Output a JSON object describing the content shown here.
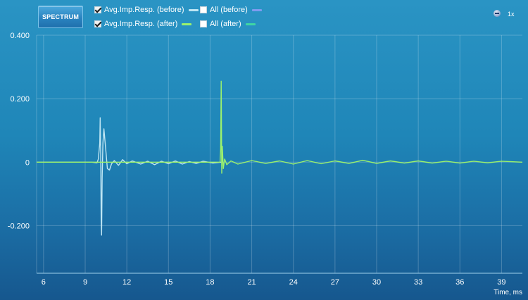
{
  "toolbar": {
    "spectrum_label": "SPECTRUM",
    "zoom_label": "1x"
  },
  "legend": [
    {
      "id": "avg-before",
      "label": "Avg.Imp.Resp. (before)",
      "checked": true,
      "color": "#bfe6f4"
    },
    {
      "id": "all-before",
      "label": "All (before)",
      "checked": false,
      "color": "#7f9cf0"
    },
    {
      "id": "avg-after",
      "label": "Avg.Imp.Resp. (after)",
      "checked": true,
      "color": "#9cf26c"
    },
    {
      "id": "all-after",
      "label": "All (after)",
      "checked": false,
      "color": "#3fd6a4"
    }
  ],
  "chart_data": {
    "type": "line",
    "xlabel": "Time, ms",
    "ylabel": "",
    "xlim": [
      5.5,
      40.5
    ],
    "ylim": [
      -0.35,
      0.4
    ],
    "x_ticks": [
      6,
      9,
      12,
      15,
      18,
      21,
      24,
      27,
      30,
      33,
      36,
      39
    ],
    "y_ticks": [
      0.4,
      0.2,
      0,
      -0.2
    ],
    "y_tick_labels": [
      "0.400",
      "0.200",
      "0",
      "-0.200"
    ],
    "grid": true,
    "series": [
      {
        "name": "Avg.Imp.Resp. (before)",
        "color": "#bfe6f4",
        "points": [
          [
            5.5,
            0
          ],
          [
            9.5,
            0
          ],
          [
            9.85,
            -0.002
          ],
          [
            9.95,
            0.01
          ],
          [
            10.05,
            0.06
          ],
          [
            10.08,
            0.14
          ],
          [
            10.12,
            0.02
          ],
          [
            10.15,
            -0.18
          ],
          [
            10.18,
            -0.23
          ],
          [
            10.22,
            -0.05
          ],
          [
            10.28,
            0.06
          ],
          [
            10.35,
            0.105
          ],
          [
            10.42,
            0.07
          ],
          [
            10.5,
            0.03
          ],
          [
            10.6,
            -0.02
          ],
          [
            10.75,
            -0.025
          ],
          [
            10.9,
            -0.005
          ],
          [
            11.1,
            0.005
          ],
          [
            11.4,
            -0.01
          ],
          [
            11.7,
            0.008
          ],
          [
            12.0,
            -0.005
          ],
          [
            12.4,
            0.004
          ],
          [
            13.0,
            -0.006
          ],
          [
            13.5,
            0.003
          ],
          [
            14.0,
            -0.008
          ],
          [
            14.5,
            0.003
          ],
          [
            15.0,
            -0.005
          ],
          [
            15.5,
            0.004
          ],
          [
            16.0,
            -0.006
          ],
          [
            16.5,
            0.002
          ],
          [
            17.0,
            -0.004
          ],
          [
            17.5,
            0.003
          ],
          [
            18.2,
            -0.003
          ],
          [
            18.8,
            0.0
          ]
        ]
      },
      {
        "name": "Avg.Imp.Resp. (after)",
        "color": "#9cf26c",
        "points": [
          [
            5.5,
            0
          ],
          [
            18.72,
            0.0
          ],
          [
            18.76,
            0.04
          ],
          [
            18.8,
            0.255
          ],
          [
            18.84,
            -0.035
          ],
          [
            18.88,
            0.05
          ],
          [
            18.95,
            -0.02
          ],
          [
            19.05,
            0.01
          ],
          [
            19.2,
            -0.008
          ],
          [
            19.5,
            0.004
          ],
          [
            20.0,
            -0.006
          ],
          [
            21.0,
            0.005
          ],
          [
            22.0,
            -0.004
          ],
          [
            23.0,
            0.004
          ],
          [
            24.0,
            -0.006
          ],
          [
            25.0,
            0.005
          ],
          [
            26.0,
            -0.005
          ],
          [
            27.0,
            0.004
          ],
          [
            28.0,
            -0.004
          ],
          [
            29.0,
            0.006
          ],
          [
            30.0,
            -0.004
          ],
          [
            31.0,
            0.004
          ],
          [
            32.0,
            -0.003
          ],
          [
            33.0,
            0.004
          ],
          [
            34.0,
            -0.003
          ],
          [
            35.0,
            0.003
          ],
          [
            36.0,
            -0.003
          ],
          [
            37.0,
            0.003
          ],
          [
            38.0,
            -0.002
          ],
          [
            39.0,
            0.003
          ],
          [
            40.5,
            0.0
          ]
        ]
      }
    ]
  }
}
